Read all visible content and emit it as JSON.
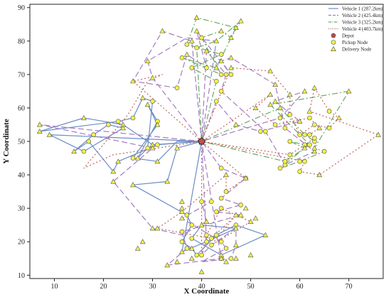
{
  "chart_data": {
    "type": "line",
    "title": "",
    "xlabel": "X Coordinate",
    "ylabel": "Y Coordinate",
    "xlim": [
      5,
      77
    ],
    "ylim": [
      9,
      91
    ],
    "xticks": [
      10,
      20,
      30,
      40,
      50,
      60,
      70
    ],
    "yticks": [
      10,
      20,
      30,
      40,
      50,
      60,
      70,
      80,
      90
    ],
    "grid": false,
    "legend_position": "top-right",
    "depot": {
      "name": "Depot",
      "x": 40,
      "y": 50,
      "color": "#c0504d"
    },
    "pickup_legend": "Pickup Node",
    "delivery_legend": "Delivery Node",
    "series": [
      {
        "name": "Vehicle 1 (287.2km)",
        "color": "#6b8cc7",
        "dash": "solid",
        "points": [
          [
            40,
            50
          ],
          [
            30,
            49
          ],
          [
            24,
            55
          ],
          [
            16,
            57
          ],
          [
            7,
            53
          ],
          [
            23,
            56
          ],
          [
            26,
            57
          ],
          [
            28,
            63
          ],
          [
            30,
            62
          ],
          [
            29,
            48
          ],
          [
            27,
            45
          ],
          [
            31,
            56
          ],
          [
            29,
            61
          ],
          [
            31,
            55
          ],
          [
            26,
            45
          ],
          [
            31,
            44
          ],
          [
            35,
            50
          ],
          [
            40,
            50
          ],
          [
            35,
            48
          ],
          [
            33,
            38
          ],
          [
            26,
            37
          ],
          [
            37,
            28
          ],
          [
            38,
            25
          ],
          [
            36,
            20
          ],
          [
            38,
            18
          ],
          [
            39,
            16
          ],
          [
            43,
            22
          ],
          [
            47,
            25
          ],
          [
            53,
            22
          ],
          [
            44,
            16
          ],
          [
            38,
            21
          ],
          [
            40,
            25
          ],
          [
            47,
            24
          ],
          [
            41,
            20
          ],
          [
            36,
            17
          ],
          [
            40,
            50
          ],
          [
            31,
            49
          ],
          [
            23,
            44
          ],
          [
            22,
            41
          ],
          [
            17,
            50
          ],
          [
            14,
            47
          ],
          [
            18,
            52
          ],
          [
            21,
            55
          ],
          [
            24,
            54
          ],
          [
            16,
            47
          ],
          [
            9,
            52
          ],
          [
            40,
            50
          ]
        ]
      },
      {
        "name": "Vehicle 2 (425.4km)",
        "color": "#a57bc1",
        "dash": "8,4",
        "points": [
          [
            40,
            50
          ],
          [
            38,
            80
          ],
          [
            32,
            83
          ],
          [
            26,
            68
          ],
          [
            35,
            66
          ],
          [
            37,
            76
          ],
          [
            41,
            72
          ],
          [
            39,
            83
          ],
          [
            46,
            70
          ],
          [
            44,
            74
          ],
          [
            46,
            75
          ],
          [
            55,
            67
          ],
          [
            57,
            54
          ],
          [
            63,
            47
          ],
          [
            57,
            43
          ],
          [
            53,
            53
          ],
          [
            44,
            65
          ],
          [
            45,
            70
          ],
          [
            41,
            77
          ],
          [
            40,
            50
          ],
          [
            44,
            42
          ],
          [
            49,
            39
          ],
          [
            44,
            33
          ],
          [
            48,
            31
          ],
          [
            43,
            29
          ],
          [
            48,
            28
          ],
          [
            36,
            23
          ],
          [
            37,
            18
          ],
          [
            33,
            13
          ],
          [
            44,
            15
          ],
          [
            40,
            50
          ],
          [
            43,
            80
          ],
          [
            37,
            81
          ],
          [
            29,
            74
          ],
          [
            30,
            69
          ],
          [
            40,
            50
          ],
          [
            43,
            62
          ],
          [
            47,
            55
          ],
          [
            52,
            53
          ],
          [
            60,
            56
          ],
          [
            55,
            62
          ],
          [
            61,
            65
          ],
          [
            56,
            57
          ],
          [
            40,
            50
          ],
          [
            7,
            55
          ],
          [
            30,
            48
          ],
          [
            22,
            38
          ],
          [
            30,
            24
          ],
          [
            36,
            22
          ],
          [
            41,
            26
          ],
          [
            40,
            32
          ],
          [
            42,
            32
          ],
          [
            36,
            27
          ],
          [
            44,
            20
          ],
          [
            45,
            18
          ],
          [
            40,
            14
          ],
          [
            46,
            15
          ],
          [
            47,
            19
          ],
          [
            47,
            24
          ],
          [
            42,
            19
          ],
          [
            40,
            16
          ],
          [
            41,
            20
          ],
          [
            40,
            50
          ]
        ]
      },
      {
        "name": "Vehicle 3 (325.2km)",
        "color": "#6aaa64",
        "dash": "8,3,2,3",
        "points": [
          [
            40,
            50
          ],
          [
            43,
            68
          ],
          [
            38,
            72
          ],
          [
            44,
            76
          ],
          [
            37,
            79
          ],
          [
            39,
            87
          ],
          [
            47,
            84
          ],
          [
            43,
            72
          ],
          [
            36,
            75
          ],
          [
            44,
            70
          ],
          [
            40,
            81
          ],
          [
            44,
            83
          ],
          [
            46,
            81
          ],
          [
            48,
            86
          ],
          [
            43,
            80
          ],
          [
            39,
            78
          ],
          [
            40,
            50
          ],
          [
            56,
            60
          ],
          [
            61,
            52
          ],
          [
            63,
            50
          ],
          [
            61,
            49
          ],
          [
            58,
            50
          ],
          [
            61,
            48
          ],
          [
            56,
            42
          ],
          [
            60,
            44
          ],
          [
            65,
            47
          ],
          [
            63,
            48
          ],
          [
            70,
            65
          ],
          [
            54,
            61
          ],
          [
            62,
            49
          ],
          [
            57,
            44
          ],
          [
            40,
            50
          ]
        ]
      },
      {
        "name": "Vehicle 4 (403.7km)",
        "color": "#c0665b",
        "dash": "2,3",
        "points": [
          [
            40,
            50
          ],
          [
            26,
            68
          ],
          [
            32,
            70
          ],
          [
            29,
            68
          ],
          [
            25,
            58
          ],
          [
            16,
            42
          ],
          [
            22,
            46
          ],
          [
            40,
            50
          ],
          [
            61,
            44
          ],
          [
            60,
            41
          ],
          [
            64,
            40
          ],
          [
            76,
            52
          ],
          [
            62,
            59
          ],
          [
            63,
            66
          ],
          [
            66,
            59
          ],
          [
            68,
            57
          ],
          [
            66,
            54
          ],
          [
            63,
            55
          ],
          [
            60,
            52
          ],
          [
            58,
            58
          ],
          [
            58,
            64
          ],
          [
            54,
            71
          ],
          [
            46,
            72
          ],
          [
            40,
            50
          ],
          [
            58,
            46
          ],
          [
            63,
            51
          ],
          [
            62,
            52
          ],
          [
            64,
            54
          ],
          [
            62,
            57
          ],
          [
            55,
            55
          ],
          [
            51,
            60
          ],
          [
            54,
            64
          ],
          [
            40,
            50
          ],
          [
            49,
            39
          ],
          [
            45,
            35
          ],
          [
            45,
            40
          ],
          [
            36,
            29
          ],
          [
            31,
            24
          ],
          [
            42,
            21
          ],
          [
            47,
            28
          ],
          [
            42,
            19
          ],
          [
            50,
            26
          ],
          [
            44,
            30
          ],
          [
            41,
            22
          ],
          [
            40,
            16
          ],
          [
            40,
            50
          ]
        ]
      }
    ],
    "pickup_nodes": [
      [
        23,
        56
      ],
      [
        26,
        57
      ],
      [
        30,
        62
      ],
      [
        29,
        48
      ],
      [
        31,
        56
      ],
      [
        26,
        45
      ],
      [
        37,
        28
      ],
      [
        38,
        25
      ],
      [
        36,
        20
      ],
      [
        39,
        16
      ],
      [
        43,
        22
      ],
      [
        47,
        25
      ],
      [
        38,
        21
      ],
      [
        41,
        20
      ],
      [
        31,
        49
      ],
      [
        17,
        50
      ],
      [
        18,
        52
      ],
      [
        21,
        55
      ],
      [
        16,
        47
      ],
      [
        43,
        68
      ],
      [
        38,
        72
      ],
      [
        44,
        76
      ],
      [
        37,
        79
      ],
      [
        36,
        75
      ],
      [
        44,
        70
      ],
      [
        40,
        81
      ],
      [
        39,
        78
      ],
      [
        41,
        72
      ],
      [
        35,
        66
      ],
      [
        46,
        70
      ],
      [
        57,
        54
      ],
      [
        57,
        43
      ],
      [
        53,
        53
      ],
      [
        44,
        65
      ],
      [
        45,
        70
      ],
      [
        44,
        42
      ],
      [
        44,
        33
      ],
      [
        43,
        29
      ],
      [
        36,
        23
      ],
      [
        37,
        18
      ],
      [
        44,
        15
      ],
      [
        43,
        62
      ],
      [
        52,
        53
      ],
      [
        56,
        57
      ],
      [
        40,
        32
      ],
      [
        42,
        32
      ],
      [
        44,
        20
      ],
      [
        45,
        18
      ],
      [
        46,
        15
      ],
      [
        42,
        19
      ],
      [
        40,
        16
      ],
      [
        61,
        52
      ],
      [
        63,
        50
      ],
      [
        61,
        49
      ],
      [
        58,
        50
      ],
      [
        56,
        42
      ],
      [
        60,
        44
      ],
      [
        65,
        47
      ],
      [
        62,
        49
      ],
      [
        57,
        44
      ],
      [
        61,
        44
      ],
      [
        60,
        41
      ],
      [
        66,
        59
      ],
      [
        66,
        54
      ],
      [
        63,
        55
      ],
      [
        60,
        52
      ],
      [
        58,
        58
      ],
      [
        58,
        46
      ],
      [
        63,
        51
      ],
      [
        62,
        52
      ],
      [
        62,
        57
      ],
      [
        55,
        55
      ],
      [
        49,
        39
      ],
      [
        45,
        35
      ],
      [
        42,
        21
      ],
      [
        44,
        30
      ],
      [
        41,
        22
      ],
      [
        48,
        31
      ]
    ],
    "delivery_nodes": [
      [
        30,
        49
      ],
      [
        24,
        55
      ],
      [
        16,
        57
      ],
      [
        7,
        53
      ],
      [
        28,
        63
      ],
      [
        27,
        45
      ],
      [
        31,
        55
      ],
      [
        29,
        61
      ],
      [
        31,
        44
      ],
      [
        35,
        48
      ],
      [
        33,
        38
      ],
      [
        26,
        37
      ],
      [
        38,
        18
      ],
      [
        53,
        22
      ],
      [
        44,
        16
      ],
      [
        40,
        25
      ],
      [
        47,
        24
      ],
      [
        36,
        17
      ],
      [
        23,
        44
      ],
      [
        22,
        41
      ],
      [
        14,
        47
      ],
      [
        24,
        54
      ],
      [
        9,
        52
      ],
      [
        38,
        80
      ],
      [
        32,
        83
      ],
      [
        26,
        68
      ],
      [
        37,
        76
      ],
      [
        39,
        83
      ],
      [
        44,
        74
      ],
      [
        46,
        75
      ],
      [
        55,
        67
      ],
      [
        63,
        47
      ],
      [
        41,
        77
      ],
      [
        49,
        39
      ],
      [
        48,
        28
      ],
      [
        33,
        13
      ],
      [
        43,
        80
      ],
      [
        29,
        74
      ],
      [
        30,
        69
      ],
      [
        47,
        55
      ],
      [
        60,
        56
      ],
      [
        55,
        62
      ],
      [
        61,
        65
      ],
      [
        7,
        55
      ],
      [
        30,
        48
      ],
      [
        22,
        38
      ],
      [
        30,
        24
      ],
      [
        41,
        26
      ],
      [
        36,
        27
      ],
      [
        47,
        19
      ],
      [
        39,
        87
      ],
      [
        47,
        84
      ],
      [
        43,
        72
      ],
      [
        44,
        83
      ],
      [
        46,
        81
      ],
      [
        48,
        86
      ],
      [
        56,
        60
      ],
      [
        61,
        48
      ],
      [
        63,
        48
      ],
      [
        70,
        65
      ],
      [
        54,
        61
      ],
      [
        64,
        40
      ],
      [
        76,
        52
      ],
      [
        62,
        59
      ],
      [
        63,
        66
      ],
      [
        68,
        57
      ],
      [
        58,
        64
      ],
      [
        54,
        71
      ],
      [
        46,
        72
      ],
      [
        64,
        54
      ],
      [
        51,
        60
      ],
      [
        54,
        64
      ],
      [
        45,
        40
      ],
      [
        36,
        29
      ],
      [
        31,
        24
      ],
      [
        47,
        28
      ],
      [
        50,
        26
      ],
      [
        44,
        15
      ],
      [
        47,
        15
      ],
      [
        45,
        14
      ],
      [
        35,
        14
      ],
      [
        40,
        11
      ],
      [
        50,
        16
      ],
      [
        49,
        30
      ],
      [
        51,
        27
      ],
      [
        36,
        32
      ],
      [
        36,
        30
      ],
      [
        27,
        18
      ],
      [
        28,
        20
      ],
      [
        38,
        15
      ]
    ]
  }
}
